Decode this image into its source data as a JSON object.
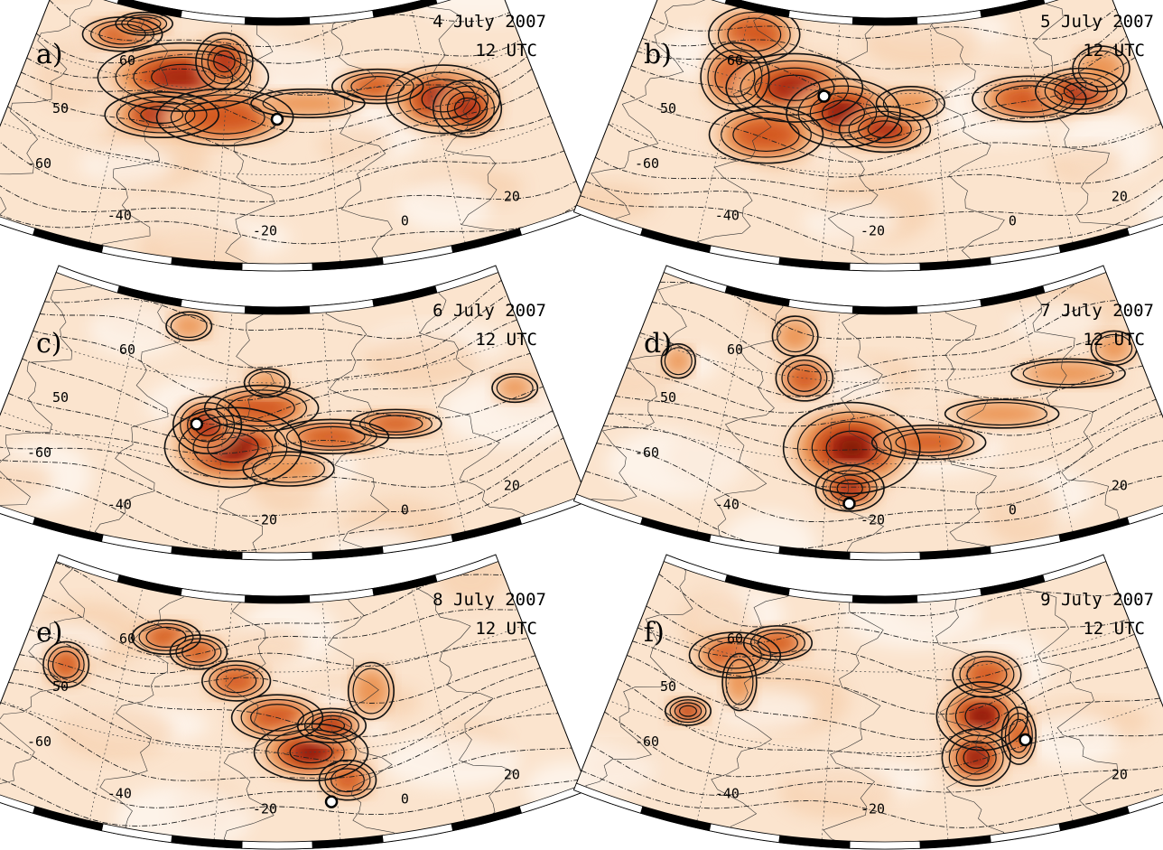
{
  "panels": [
    {
      "letter": "a)",
      "date": "4 July 2007",
      "time": "12 UTC",
      "lat_labels": [
        "60",
        "50",
        "-60"
      ],
      "lon_labels": [
        "-40",
        "-20",
        "0",
        "20"
      ],
      "marker": [
        0.5,
        0.4
      ],
      "blobs": [
        [
          0.17,
          0.14,
          0.07,
          0.06,
          2
        ],
        [
          0.21,
          0.08,
          0.05,
          0.04,
          2
        ],
        [
          0.31,
          0.26,
          0.15,
          0.12,
          3
        ],
        [
          0.28,
          0.42,
          0.1,
          0.08,
          3
        ],
        [
          0.39,
          0.18,
          0.05,
          0.1,
          3
        ],
        [
          0.4,
          0.4,
          0.12,
          0.1,
          2
        ],
        [
          0.56,
          0.34,
          0.1,
          0.05,
          1
        ],
        [
          0.7,
          0.3,
          0.08,
          0.06,
          2
        ],
        [
          0.82,
          0.4,
          0.1,
          0.12,
          4
        ],
        [
          0.86,
          0.46,
          0.06,
          0.1,
          3
        ]
      ]
    },
    {
      "letter": "b)",
      "date": "5 July 2007",
      "time": "12 UTC",
      "lat_labels": [
        "60",
        "50",
        "-60"
      ],
      "lon_labels": [
        "-40",
        "-20",
        "0",
        "20"
      ],
      "marker": [
        0.38,
        0.32
      ],
      "blobs": [
        [
          0.22,
          0.12,
          0.08,
          0.1,
          2
        ],
        [
          0.2,
          0.3,
          0.06,
          0.12,
          2
        ],
        [
          0.32,
          0.3,
          0.12,
          0.12,
          3
        ],
        [
          0.42,
          0.38,
          0.1,
          0.12,
          4
        ],
        [
          0.28,
          0.5,
          0.1,
          0.1,
          2
        ],
        [
          0.5,
          0.44,
          0.08,
          0.08,
          3
        ],
        [
          0.55,
          0.34,
          0.06,
          0.06,
          1
        ],
        [
          0.78,
          0.38,
          0.1,
          0.08,
          2
        ],
        [
          0.88,
          0.4,
          0.08,
          0.08,
          3
        ],
        [
          0.93,
          0.34,
          0.05,
          0.08,
          1
        ]
      ]
    },
    {
      "letter": "c)",
      "date": "6 July 2007",
      "time": "12 UTC",
      "lat_labels": [
        "60",
        "50",
        "-60"
      ],
      "lon_labels": [
        "-40",
        "-20",
        "0",
        "20"
      ],
      "marker": [
        0.35,
        0.48
      ],
      "blobs": [
        [
          0.31,
          0.1,
          0.04,
          0.05,
          1
        ],
        [
          0.42,
          0.56,
          0.12,
          0.14,
          4
        ],
        [
          0.37,
          0.48,
          0.06,
          0.1,
          3
        ],
        [
          0.47,
          0.4,
          0.1,
          0.08,
          2
        ],
        [
          0.48,
          0.3,
          0.04,
          0.05,
          1
        ],
        [
          0.6,
          0.52,
          0.1,
          0.06,
          2
        ],
        [
          0.72,
          0.5,
          0.08,
          0.05,
          2
        ],
        [
          0.95,
          0.48,
          0.04,
          0.05,
          1
        ],
        [
          0.52,
          0.64,
          0.08,
          0.06,
          1
        ]
      ]
    },
    {
      "letter": "d)",
      "date": "7 July 2007",
      "time": "12 UTC",
      "lat_labels": [
        "60",
        "50",
        "-60"
      ],
      "lon_labels": [
        "-40",
        "-20",
        "0",
        "20"
      ],
      "marker": [
        0.44,
        0.78
      ],
      "blobs": [
        [
          0.31,
          0.14,
          0.04,
          0.07,
          1
        ],
        [
          0.34,
          0.3,
          0.05,
          0.08,
          2
        ],
        [
          0.44,
          0.56,
          0.12,
          0.16,
          4
        ],
        [
          0.44,
          0.72,
          0.06,
          0.08,
          3
        ],
        [
          0.58,
          0.54,
          0.1,
          0.06,
          2
        ],
        [
          0.72,
          0.46,
          0.1,
          0.05,
          1
        ],
        [
          0.86,
          0.36,
          0.1,
          0.05,
          1
        ],
        [
          0.96,
          0.32,
          0.04,
          0.06,
          1
        ],
        [
          0.09,
          0.34,
          0.03,
          0.06,
          1
        ]
      ]
    },
    {
      "letter": "e)",
      "date": "8 July 2007",
      "time": "12 UTC",
      "lat_labels": [
        "60",
        "50",
        "-60"
      ],
      "lon_labels": [
        "-40",
        "-20",
        "0",
        "20"
      ],
      "marker": [
        0.59,
        0.82
      ],
      "blobs": [
        [
          0.09,
          0.4,
          0.04,
          0.08,
          2
        ],
        [
          0.27,
          0.2,
          0.06,
          0.06,
          2
        ],
        [
          0.34,
          0.24,
          0.05,
          0.06,
          2
        ],
        [
          0.42,
          0.34,
          0.06,
          0.07,
          2
        ],
        [
          0.5,
          0.48,
          0.08,
          0.08,
          2
        ],
        [
          0.56,
          0.62,
          0.1,
          0.1,
          4
        ],
        [
          0.6,
          0.52,
          0.06,
          0.06,
          3
        ],
        [
          0.62,
          0.74,
          0.05,
          0.07,
          2
        ],
        [
          0.68,
          0.4,
          0.04,
          0.1,
          1
        ]
      ]
    },
    {
      "letter": "f)",
      "date": "9 July 2007",
      "time": "12 UTC",
      "lat_labels": [
        "60",
        "50",
        "-60"
      ],
      "lon_labels": [
        "-40",
        "-20",
        "20"
      ],
      "marker": [
        0.75,
        0.62
      ],
      "blobs": [
        [
          0.2,
          0.3,
          0.08,
          0.08,
          2
        ],
        [
          0.28,
          0.22,
          0.06,
          0.06,
          2
        ],
        [
          0.14,
          0.56,
          0.04,
          0.05,
          3
        ],
        [
          0.22,
          0.4,
          0.03,
          0.1,
          1
        ],
        [
          0.68,
          0.5,
          0.08,
          0.12,
          4
        ],
        [
          0.66,
          0.66,
          0.06,
          0.1,
          4
        ],
        [
          0.7,
          0.34,
          0.06,
          0.08,
          2
        ],
        [
          0.74,
          0.6,
          0.03,
          0.1,
          2
        ]
      ]
    }
  ]
}
